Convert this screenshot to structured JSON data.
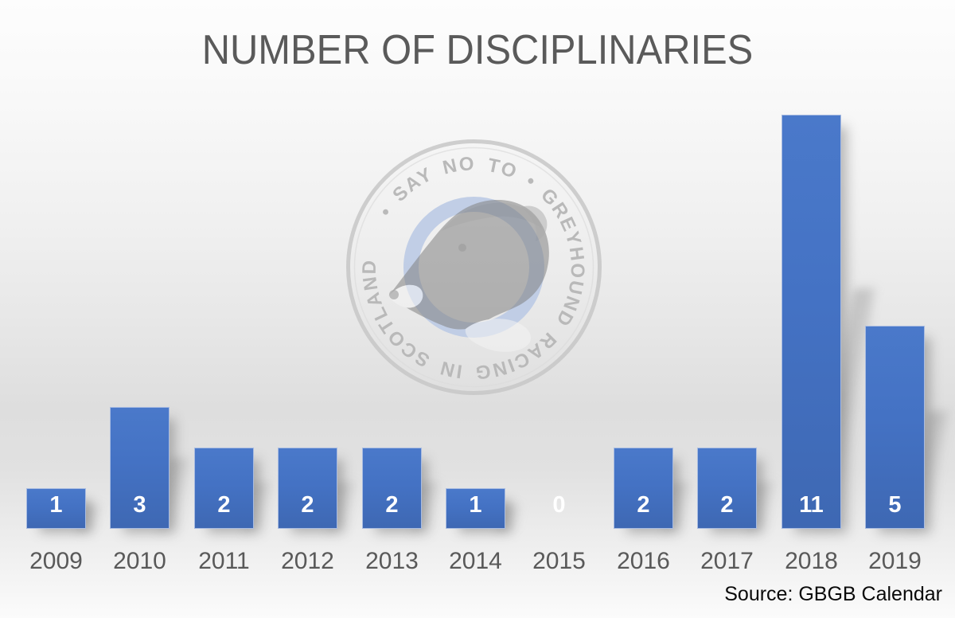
{
  "chart_data": {
    "type": "bar",
    "title": "NUMBER OF DISCIPLINARIES",
    "categories": [
      "2009",
      "2010",
      "2011",
      "2012",
      "2013",
      "2014",
      "2015",
      "2016",
      "2017",
      "2018",
      "2019"
    ],
    "values": [
      1,
      3,
      2,
      2,
      2,
      1,
      0,
      2,
      2,
      11,
      5
    ],
    "xlabel": "",
    "ylabel": "",
    "ylim": [
      0,
      11
    ],
    "gridlines": false,
    "legend": "none",
    "data_labels_position": "inside-base",
    "bar_color": "#4472c4",
    "data_label_color": "#ffffff",
    "tick_label_color": "#595959",
    "title_color": "#5a5a5a",
    "source_note": "Source: GBGB Calendar"
  },
  "watermark": {
    "circular_text": "• SAY NO TO • GREYHOUND RACING IN SCOTLAND",
    "ring_color": "#c7c7c7",
    "blue_ring_color": "#b9c8e4",
    "text_color": "#b9b9b9"
  }
}
